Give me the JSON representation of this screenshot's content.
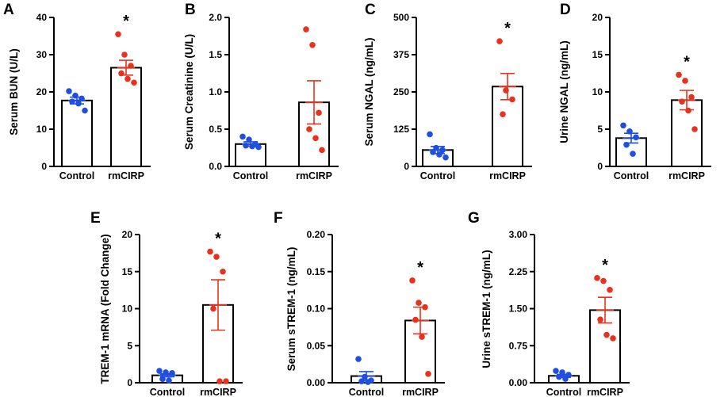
{
  "chart_data": [
    {
      "type": "bar",
      "panel": "A",
      "ylabel": "Serum BUN (U/L)",
      "categories": [
        "Control",
        "rmCIRP"
      ],
      "ylim": [
        0,
        40
      ],
      "ticks": [
        "0",
        "10",
        "20",
        "30",
        "40"
      ],
      "tick_values": [
        0,
        10,
        20,
        30,
        40
      ],
      "series": [
        {
          "name": "Control",
          "color": "#1f4fe0",
          "mean": 17.7,
          "sem": 0.9,
          "points": [
            20.2,
            19.0,
            18.2,
            17.4,
            16.9,
            15.0
          ]
        },
        {
          "name": "rmCIRP",
          "color": "#e8321e",
          "mean": 26.5,
          "sem": 2.0,
          "points": [
            35.5,
            30.0,
            27.0,
            25.0,
            23.5,
            22.5
          ]
        }
      ],
      "significance": "*"
    },
    {
      "type": "bar",
      "panel": "B",
      "ylabel": "Serum Creatinine (U/L)",
      "categories": [
        "Control",
        "rmCIRP"
      ],
      "ylim": [
        0,
        2.0
      ],
      "ticks": [
        "0.0",
        "0.5",
        "1.0",
        "1.5",
        "2.0"
      ],
      "tick_values": [
        0,
        0.5,
        1.0,
        1.5,
        2.0
      ],
      "series": [
        {
          "name": "Control",
          "color": "#1f4fe0",
          "mean": 0.3,
          "sem": 0.03,
          "points": [
            0.4,
            0.36,
            0.3,
            0.28,
            0.27,
            0.26
          ]
        },
        {
          "name": "rmCIRP",
          "color": "#e8321e",
          "mean": 0.86,
          "sem": 0.29,
          "points": [
            1.84,
            1.63,
            0.72,
            0.5,
            0.38,
            0.22
          ]
        }
      ],
      "significance": ""
    },
    {
      "type": "bar",
      "panel": "C",
      "ylabel": "Serum NGAL (ng/mL)",
      "categories": [
        "Control",
        "rmCIRP"
      ],
      "ylim": [
        0,
        500
      ],
      "ticks": [
        "0",
        "125",
        "250",
        "375",
        "500"
      ],
      "tick_values": [
        0,
        125,
        250,
        375,
        500
      ],
      "series": [
        {
          "name": "Control",
          "color": "#1f4fe0",
          "mean": 55,
          "sem": 12,
          "points": [
            108,
            62,
            55,
            48,
            40,
            30
          ]
        },
        {
          "name": "rmCIRP",
          "color": "#e8321e",
          "mean": 268,
          "sem": 44,
          "points": [
            420,
            255,
            225,
            175
          ]
        }
      ],
      "significance": "*"
    },
    {
      "type": "bar",
      "panel": "D",
      "ylabel": "Urine NGAL (ng/mL)",
      "categories": [
        "Control",
        "rmCIRP"
      ],
      "ylim": [
        0,
        20
      ],
      "ticks": [
        "0",
        "5",
        "10",
        "15",
        "20"
      ],
      "tick_values": [
        0,
        5,
        10,
        15,
        20
      ],
      "series": [
        {
          "name": "Control",
          "color": "#1f4fe0",
          "mean": 3.8,
          "sem": 0.65,
          "points": [
            5.5,
            4.7,
            3.9,
            2.9,
            1.7
          ]
        },
        {
          "name": "rmCIRP",
          "color": "#e8321e",
          "mean": 8.9,
          "sem": 1.3,
          "points": [
            12.3,
            11.5,
            9.3,
            8.7,
            7.5,
            5.0
          ]
        }
      ],
      "significance": "*"
    },
    {
      "type": "bar",
      "panel": "E",
      "ylabel": "TREM-1 mRNA (Fold Change)",
      "categories": [
        "Control",
        "rmCIRP"
      ],
      "ylim": [
        0,
        20
      ],
      "ticks": [
        "0",
        "5",
        "10",
        "15",
        "20"
      ],
      "tick_values": [
        0,
        5,
        10,
        15,
        20
      ],
      "series": [
        {
          "name": "Control",
          "color": "#1f4fe0",
          "mean": 1.0,
          "sem": 0.2,
          "points": [
            1.6,
            1.4,
            1.3,
            0.5,
            0.3
          ]
        },
        {
          "name": "rmCIRP",
          "color": "#e8321e",
          "mean": 10.5,
          "sem": 3.4,
          "points": [
            17.7,
            17.0,
            15.0,
            10.0,
            0.2,
            0.2
          ]
        }
      ],
      "significance": "*"
    },
    {
      "type": "bar",
      "panel": "F",
      "ylabel": "Serum sTREM-1 (ng/mL)",
      "categories": [
        "Control",
        "rmCIRP"
      ],
      "ylim": [
        0,
        0.2
      ],
      "ticks": [
        "0.00",
        "0.05",
        "0.10",
        "0.15",
        "0.20"
      ],
      "tick_values": [
        0,
        0.05,
        0.1,
        0.15,
        0.2
      ],
      "series": [
        {
          "name": "Control",
          "color": "#1f4fe0",
          "mean": 0.009,
          "sem": 0.006,
          "points": [
            0.032,
            0.008,
            0.003,
            0.002,
            0.001
          ]
        },
        {
          "name": "rmCIRP",
          "color": "#e8321e",
          "mean": 0.084,
          "sem": 0.018,
          "points": [
            0.138,
            0.108,
            0.102,
            0.085,
            0.062,
            0.012
          ]
        }
      ],
      "significance": "*"
    },
    {
      "type": "bar",
      "panel": "G",
      "ylabel": "Urine sTREM-1 (ng/mL)",
      "categories": [
        "Control",
        "rmCIRP"
      ],
      "ylim": [
        0,
        3.0
      ],
      "ticks": [
        "0.00",
        "0.75",
        "1.50",
        "2.25",
        "3.00"
      ],
      "tick_values": [
        0,
        0.75,
        1.5,
        2.25,
        3.0
      ],
      "series": [
        {
          "name": "Control",
          "color": "#1f4fe0",
          "mean": 0.14,
          "sem": 0.03,
          "points": [
            0.24,
            0.21,
            0.16,
            0.12,
            0.08
          ]
        },
        {
          "name": "rmCIRP",
          "color": "#e8321e",
          "mean": 1.47,
          "sem": 0.26,
          "points": [
            2.12,
            2.06,
            1.88,
            1.28,
            0.97,
            0.9
          ]
        }
      ],
      "significance": "*"
    }
  ]
}
